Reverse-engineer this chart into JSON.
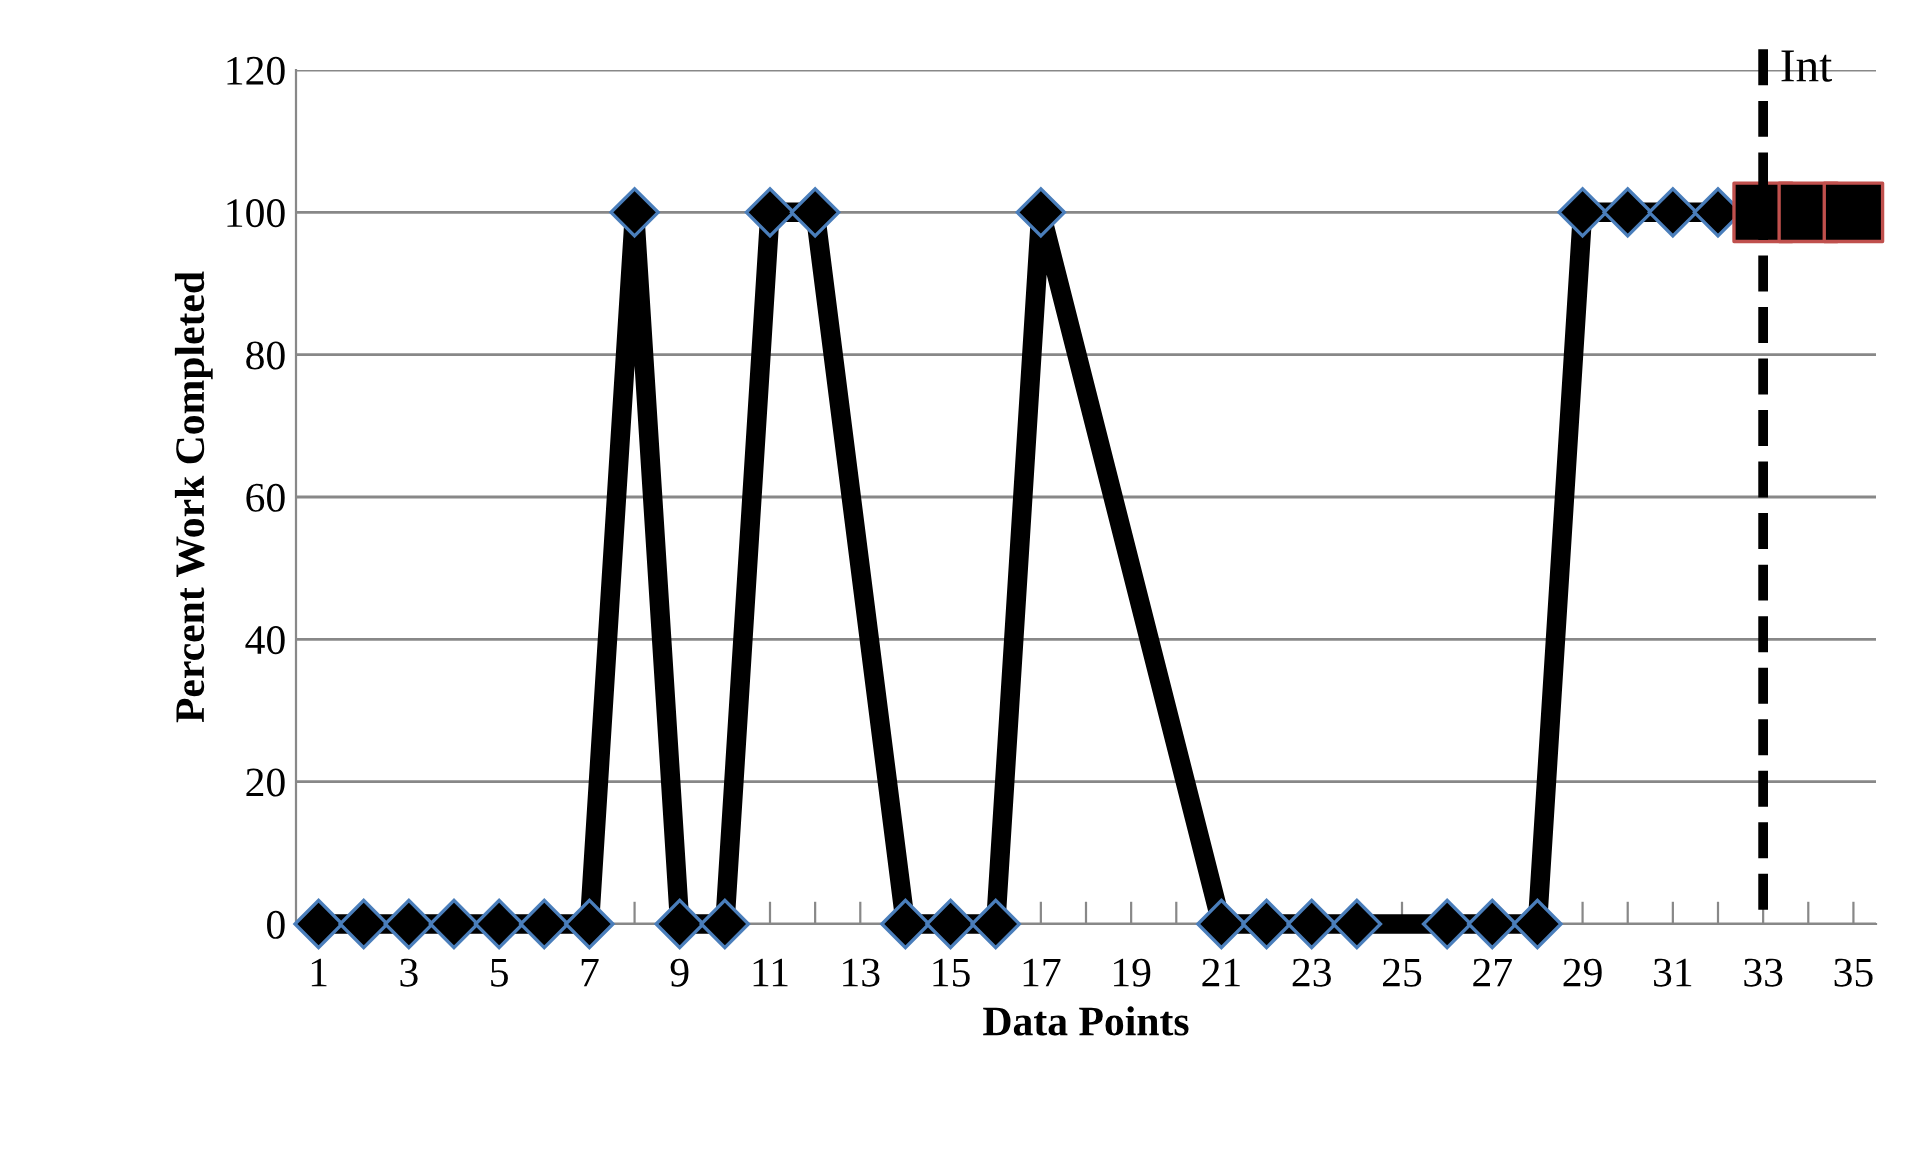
{
  "chart_data": {
    "type": "line",
    "xlabel": "Data Points",
    "ylabel": "Percent Work Completed",
    "categories": [
      "1",
      null,
      "3",
      null,
      "5",
      null,
      "7",
      null,
      "9",
      null,
      "11",
      null,
      "13",
      null,
      "15",
      null,
      "17",
      null,
      "19",
      null,
      "21",
      null,
      "23",
      null,
      "25",
      null,
      "27",
      null,
      "29",
      null,
      "31",
      null,
      "33",
      null,
      "35"
    ],
    "series": [
      {
        "color": "#000000",
        "marker": "diamond",
        "values": [
          0,
          0,
          0,
          0,
          0,
          0,
          0,
          100,
          0,
          0,
          100,
          100,
          null,
          0,
          0,
          0,
          100,
          null,
          null,
          null,
          0,
          0,
          0,
          0,
          null,
          0,
          0,
          0,
          100,
          100,
          100,
          100,
          null,
          null,
          null
        ]
      },
      {
        "type": "scatter",
        "color": "#000000",
        "marker": "square",
        "values": [
          null,
          null,
          null,
          null,
          null,
          null,
          null,
          null,
          null,
          null,
          null,
          null,
          null,
          null,
          null,
          null,
          null,
          null,
          null,
          null,
          null,
          null,
          null,
          null,
          null,
          null,
          null,
          null,
          null,
          null,
          null,
          null,
          100,
          100,
          100
        ]
      }
    ],
    "ylim": [
      0,
      120
    ],
    "yticks": [
      0,
      20,
      40,
      60,
      80,
      100,
      120
    ],
    "grid": "y",
    "ref_lines": [
      {
        "axis": "x",
        "value": "33",
        "label": "Int",
        "line_style": "dashed",
        "color": "#000000"
      }
    ]
  }
}
